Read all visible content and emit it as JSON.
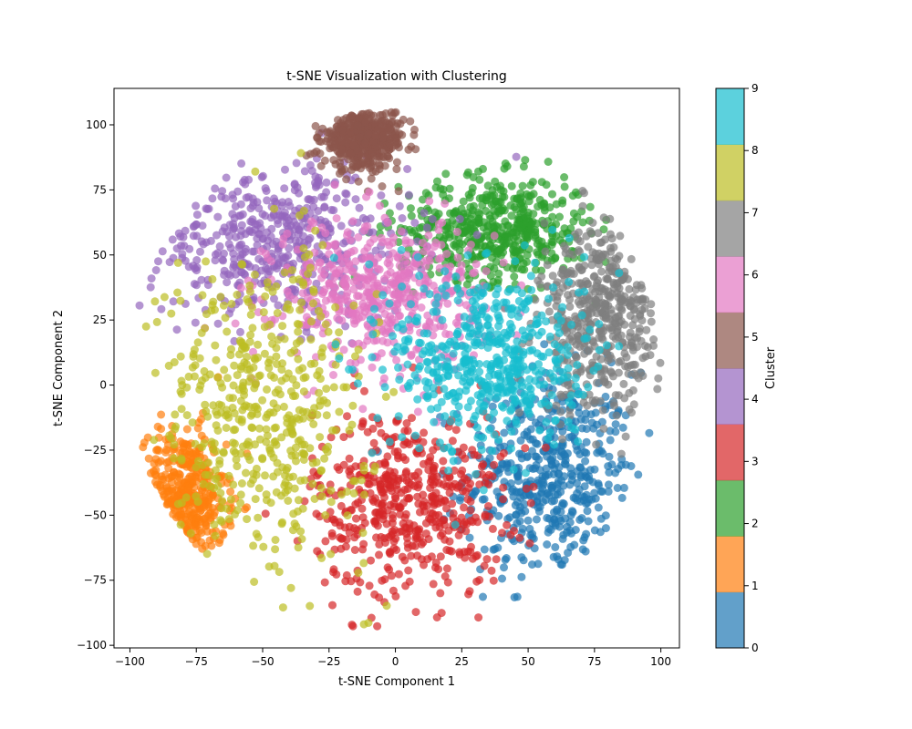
{
  "chart_data": {
    "type": "scatter",
    "title": "t-SNE Visualization with Clustering",
    "xlabel": "t-SNE Component 1",
    "ylabel": "t-SNE Component 2",
    "xlim": [
      -106,
      107
    ],
    "ylim": [
      -101,
      114
    ],
    "xticks": [
      -100,
      -75,
      -50,
      -25,
      0,
      25,
      50,
      75,
      100
    ],
    "yticks": [
      -100,
      -75,
      -50,
      -25,
      0,
      25,
      50,
      75,
      100
    ],
    "grid": false,
    "colorbar": {
      "label": "Cluster",
      "ticks": [
        0,
        1,
        2,
        3,
        4,
        5,
        6,
        7,
        8,
        9
      ],
      "colors": [
        "#1f77b4",
        "#ff7f0e",
        "#2ca02c",
        "#d62728",
        "#9467bd",
        "#8c564b",
        "#e377c2",
        "#7f7f7f",
        "#bcbd22",
        "#17becf"
      ],
      "alpha": 0.7
    },
    "clusters": [
      {
        "cluster": 0,
        "color": "#1f77b4",
        "center": [
          58,
          -35
        ],
        "spread": [
          16,
          20
        ]
      },
      {
        "cluster": 1,
        "color": "#ff7f0e",
        "center": [
          -80,
          -45
        ],
        "spread": [
          8,
          14
        ]
      },
      {
        "cluster": 2,
        "color": "#2ca02c",
        "center": [
          38,
          60
        ],
        "spread": [
          18,
          10
        ]
      },
      {
        "cluster": 3,
        "color": "#d62728",
        "center": [
          5,
          -45
        ],
        "spread": [
          18,
          18
        ]
      },
      {
        "cluster": 4,
        "color": "#9467bd",
        "center": [
          -45,
          55
        ],
        "spread": [
          25,
          15
        ]
      },
      {
        "cluster": 5,
        "color": "#8c564b",
        "center": [
          -12,
          95
        ],
        "spread": [
          8,
          6
        ]
      },
      {
        "cluster": 6,
        "color": "#e377c2",
        "center": [
          -5,
          35
        ],
        "spread": [
          20,
          14
        ]
      },
      {
        "cluster": 7,
        "color": "#7f7f7f",
        "center": [
          78,
          25
        ],
        "spread": [
          12,
          18
        ]
      },
      {
        "cluster": 8,
        "color": "#bcbd22",
        "center": [
          -50,
          -10
        ],
        "spread": [
          20,
          30
        ]
      },
      {
        "cluster": 9,
        "color": "#17becf",
        "center": [
          35,
          10
        ],
        "spread": [
          18,
          18
        ]
      }
    ]
  }
}
